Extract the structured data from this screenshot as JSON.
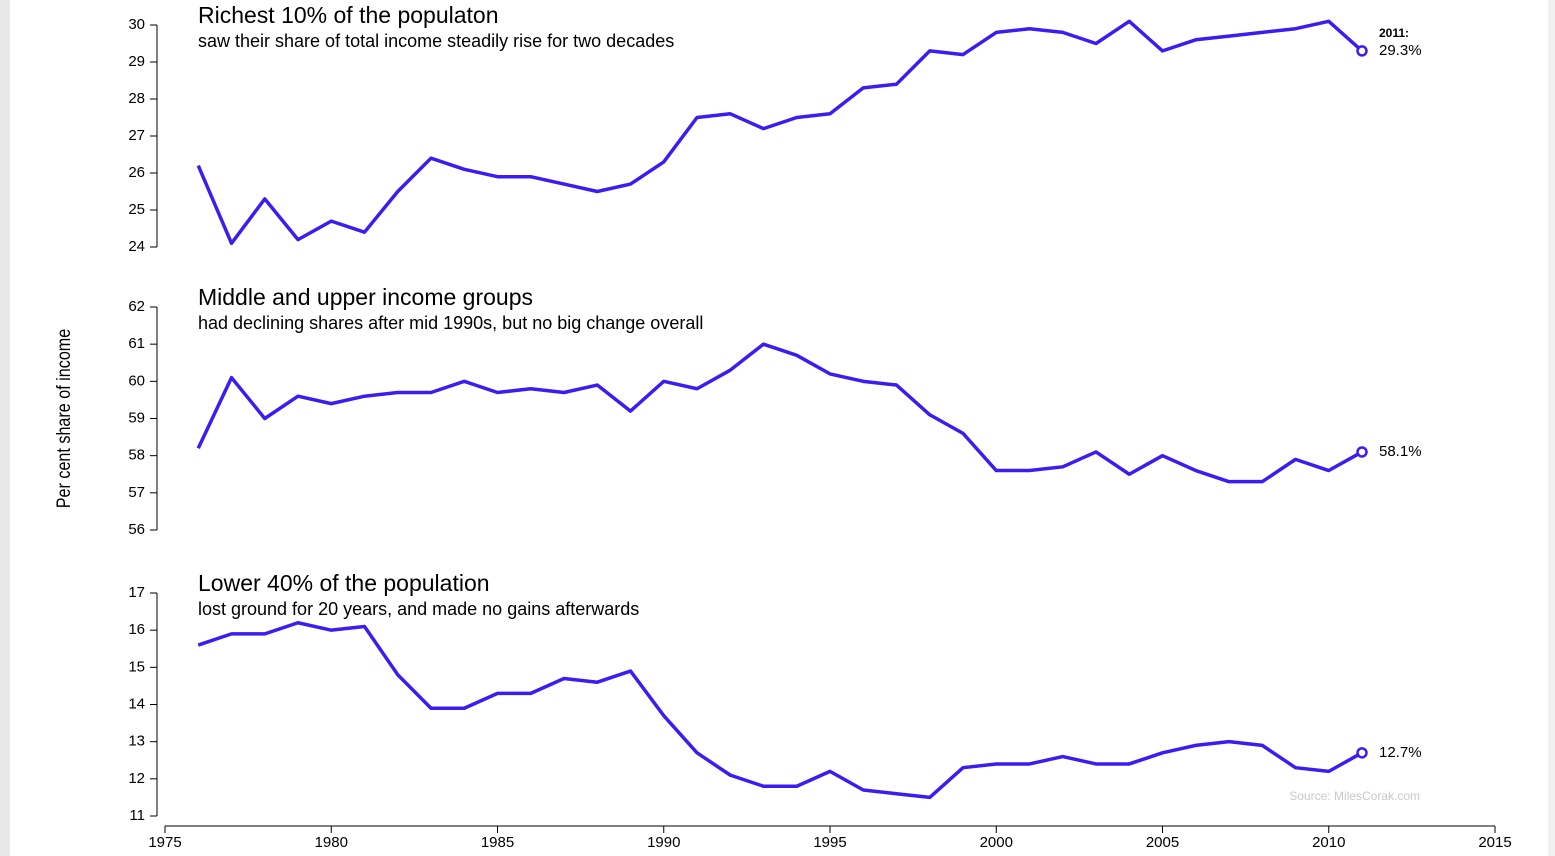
{
  "chart_data": [
    {
      "type": "line",
      "title": "Richest 10% of the populaton",
      "subtitle": "saw their share of total income steadily rise for two decades",
      "x": [
        1976,
        1977,
        1978,
        1979,
        1980,
        1981,
        1982,
        1983,
        1984,
        1985,
        1986,
        1987,
        1988,
        1989,
        1990,
        1991,
        1992,
        1993,
        1994,
        1995,
        1996,
        1997,
        1998,
        1999,
        2000,
        2001,
        2002,
        2003,
        2004,
        2005,
        2006,
        2007,
        2008,
        2009,
        2010,
        2011
      ],
      "series": [
        {
          "name": "Richest 10%",
          "color": "#3d1cf2",
          "values": [
            26.2,
            24.1,
            25.3,
            24.2,
            24.7,
            24.4,
            25.5,
            26.4,
            26.1,
            25.9,
            25.9,
            25.7,
            25.5,
            25.7,
            26.3,
            27.5,
            27.6,
            27.2,
            27.5,
            27.6,
            28.3,
            28.4,
            29.3,
            29.2,
            29.8,
            29.9,
            29.8,
            29.5,
            30.1,
            29.3,
            29.6,
            29.7,
            29.8,
            29.9,
            30.1,
            29.3
          ]
        }
      ],
      "annotations": [
        "2011:",
        "29.3%"
      ],
      "xlim": [
        1975,
        2015
      ],
      "ylim": [
        24,
        30
      ],
      "yticks": [
        24,
        25,
        26,
        27,
        28,
        29,
        30
      ]
    },
    {
      "type": "line",
      "title": "Middle and upper income groups",
      "subtitle": "had declining shares after mid 1990s, but no big change overall",
      "ylabel": "Per cent share of income",
      "x": [
        1976,
        1977,
        1978,
        1979,
        1980,
        1981,
        1982,
        1983,
        1984,
        1985,
        1986,
        1987,
        1988,
        1989,
        1990,
        1991,
        1992,
        1993,
        1994,
        1995,
        1996,
        1997,
        1998,
        1999,
        2000,
        2001,
        2002,
        2003,
        2004,
        2005,
        2006,
        2007,
        2008,
        2009,
        2010,
        2011
      ],
      "series": [
        {
          "name": "Middle and upper",
          "color": "#3d1cf2",
          "values": [
            58.2,
            60.1,
            59.0,
            59.6,
            59.4,
            59.6,
            59.7,
            59.7,
            60.0,
            59.7,
            59.8,
            59.7,
            59.9,
            59.2,
            60.0,
            59.8,
            60.3,
            61.0,
            60.7,
            60.2,
            60.0,
            59.9,
            59.1,
            58.6,
            57.6,
            57.6,
            57.7,
            58.1,
            57.5,
            58.0,
            57.6,
            57.3,
            57.3,
            57.9,
            57.6,
            58.1
          ]
        }
      ],
      "annotations": [
        "58.1%"
      ],
      "xlim": [
        1975,
        2015
      ],
      "ylim": [
        56,
        62
      ],
      "yticks": [
        56,
        57,
        58,
        59,
        60,
        61,
        62
      ]
    },
    {
      "type": "line",
      "title": "Lower 40% of the population",
      "subtitle": "lost ground for 20 years, and made no gains afterwards",
      "source": "Source: MilesCorak.com",
      "x": [
        1976,
        1977,
        1978,
        1979,
        1980,
        1981,
        1982,
        1983,
        1984,
        1985,
        1986,
        1987,
        1988,
        1989,
        1990,
        1991,
        1992,
        1993,
        1994,
        1995,
        1996,
        1997,
        1998,
        1999,
        2000,
        2001,
        2002,
        2003,
        2004,
        2005,
        2006,
        2007,
        2008,
        2009,
        2010,
        2011
      ],
      "series": [
        {
          "name": "Lower 40%",
          "color": "#3d1cf2",
          "values": [
            15.6,
            15.9,
            15.9,
            16.2,
            16.0,
            16.1,
            14.8,
            13.9,
            13.9,
            14.3,
            14.3,
            14.7,
            14.6,
            14.9,
            13.7,
            12.7,
            12.1,
            11.8,
            11.8,
            12.2,
            11.7,
            11.6,
            11.5,
            12.3,
            12.4,
            12.4,
            12.6,
            12.4,
            12.4,
            12.7,
            12.9,
            13.0,
            12.9,
            12.3,
            12.2,
            12.7
          ]
        }
      ],
      "annotations": [
        "12.7%"
      ],
      "xlim": [
        1975,
        2015
      ],
      "ylim": [
        11,
        17
      ],
      "yticks": [
        11,
        12,
        13,
        14,
        15,
        16,
        17
      ],
      "xticks": [
        1975,
        1980,
        1985,
        1990,
        1995,
        2000,
        2005,
        2010,
        2015
      ]
    }
  ]
}
